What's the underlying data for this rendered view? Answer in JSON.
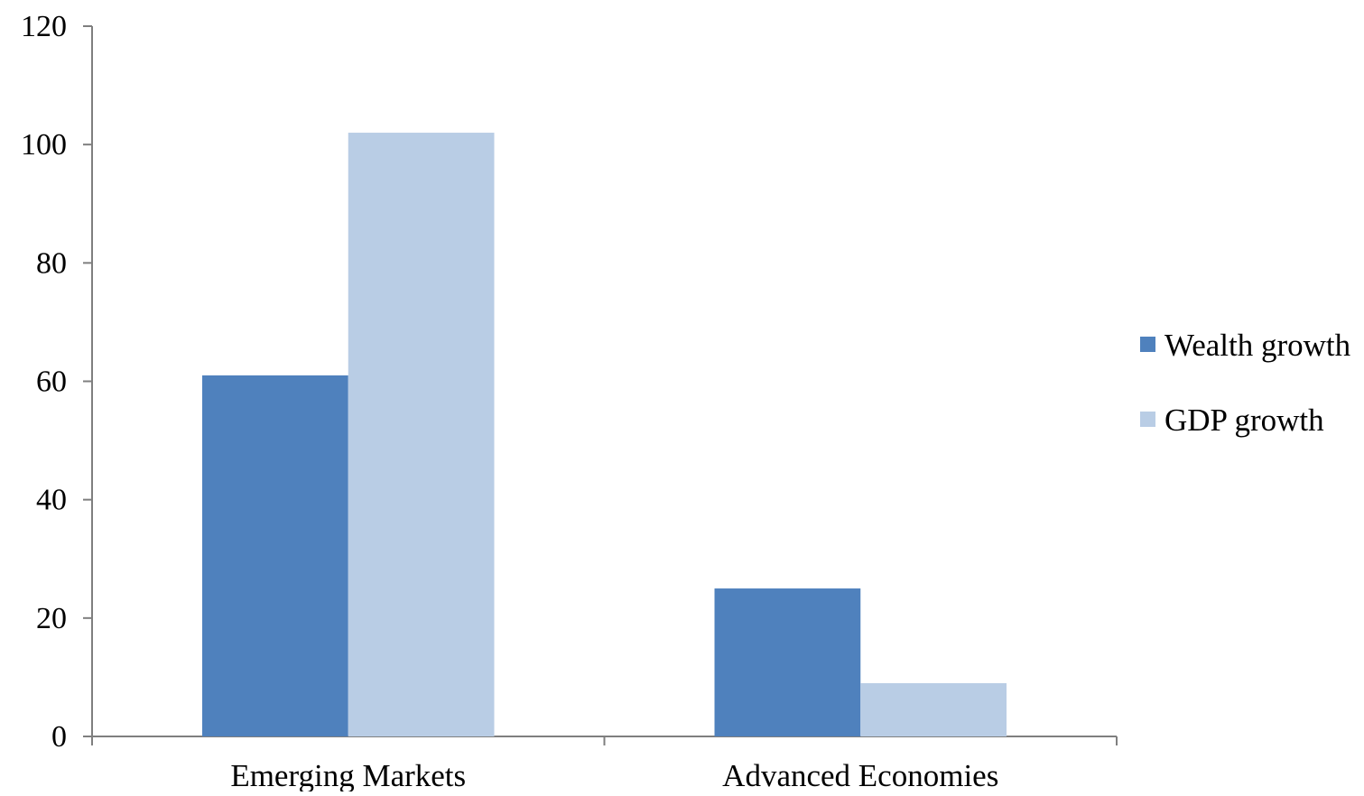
{
  "chart_data": {
    "type": "bar",
    "title": "",
    "xlabel": "",
    "ylabel": "",
    "categories": [
      "Emerging Markets",
      "Advanced Economies"
    ],
    "series": [
      {
        "name": "Wealth growth",
        "values": [
          61,
          25
        ],
        "color": "#4f81bd"
      },
      {
        "name": "GDP growth",
        "values": [
          102,
          9
        ],
        "color": "#b9cde5"
      }
    ],
    "ylim": [
      0,
      120
    ],
    "yticks": [
      0,
      20,
      40,
      60,
      80,
      100,
      120
    ],
    "ytick_labels": [
      "0",
      "20",
      "40",
      "60",
      "80",
      "100",
      "120"
    ],
    "grid": false,
    "legend": {
      "position": "right"
    },
    "axis_color": "#7f7f7f"
  }
}
